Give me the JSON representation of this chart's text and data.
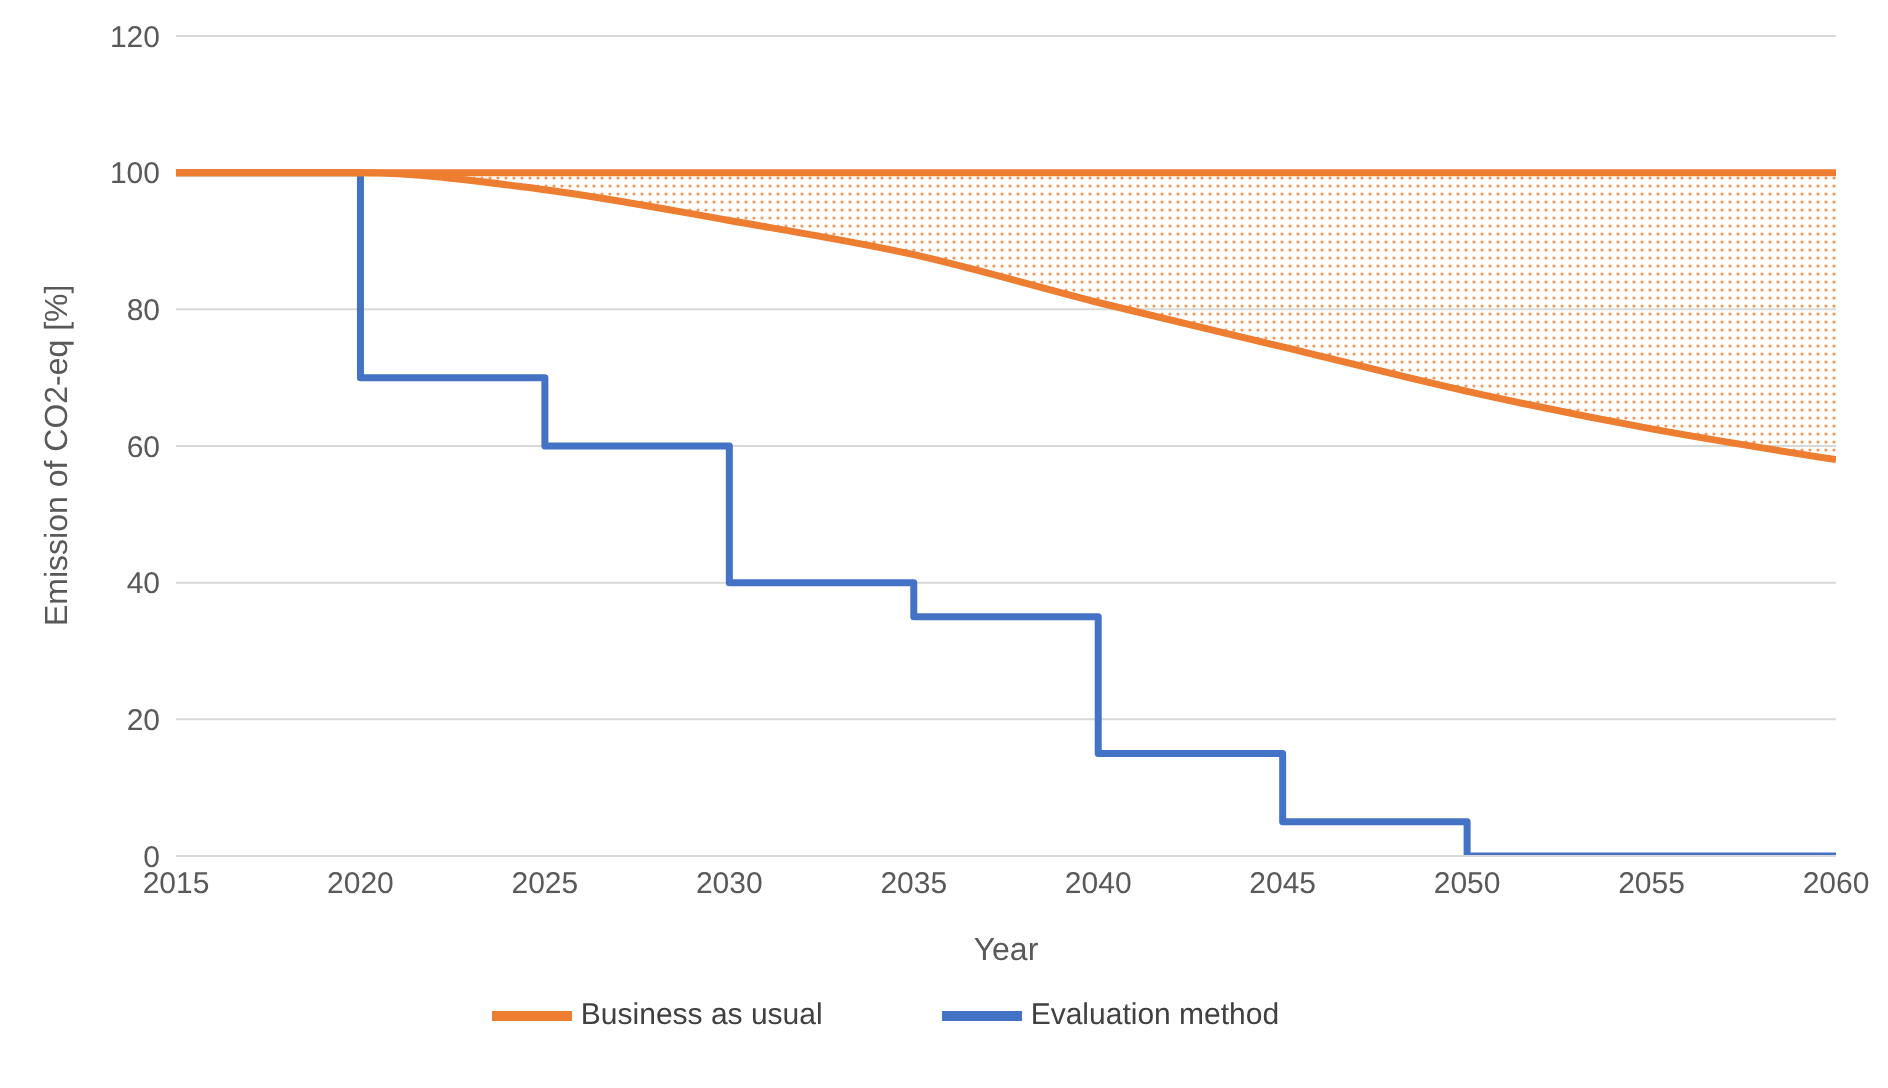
{
  "chart_data": {
    "type": "line",
    "xlabel": "Year",
    "ylabel": "Emission of CO2-eq [%]",
    "x": [
      2015,
      2020,
      2025,
      2030,
      2035,
      2040,
      2045,
      2050,
      2055,
      2060
    ],
    "series": [
      {
        "name": "Evaluation method",
        "type": "step",
        "color": "#4472c4",
        "values": [
          100,
          70,
          60,
          40,
          35,
          15,
          5,
          0,
          0,
          0
        ]
      },
      {
        "name": "Business as usual",
        "color": "#ed7d31",
        "values": [
          100,
          100,
          100,
          100,
          100,
          100,
          100,
          100,
          100,
          100
        ]
      },
      {
        "color": "#ed7d31",
        "values": [
          100,
          100,
          97.5,
          93,
          88,
          81,
          74.5,
          68,
          62.5,
          58
        ],
        "lower": [
          100,
          100,
          97.5,
          93,
          88,
          81,
          74.5,
          68,
          62.5,
          58
        ],
        "upper": [
          100,
          100,
          100,
          100,
          100,
          100,
          100,
          100,
          100,
          100
        ]
      }
    ],
    "xlim": [
      2015,
      2060
    ],
    "xticks": [
      2015,
      2020,
      2025,
      2030,
      2035,
      2040,
      2045,
      2050,
      2055,
      2060
    ],
    "ylim": [
      0,
      120
    ],
    "yticks": [
      0,
      20,
      40,
      60,
      80,
      100,
      120
    ],
    "grid": "y",
    "legend": "bottom",
    "marker": "none",
    "line_style": "solid"
  }
}
